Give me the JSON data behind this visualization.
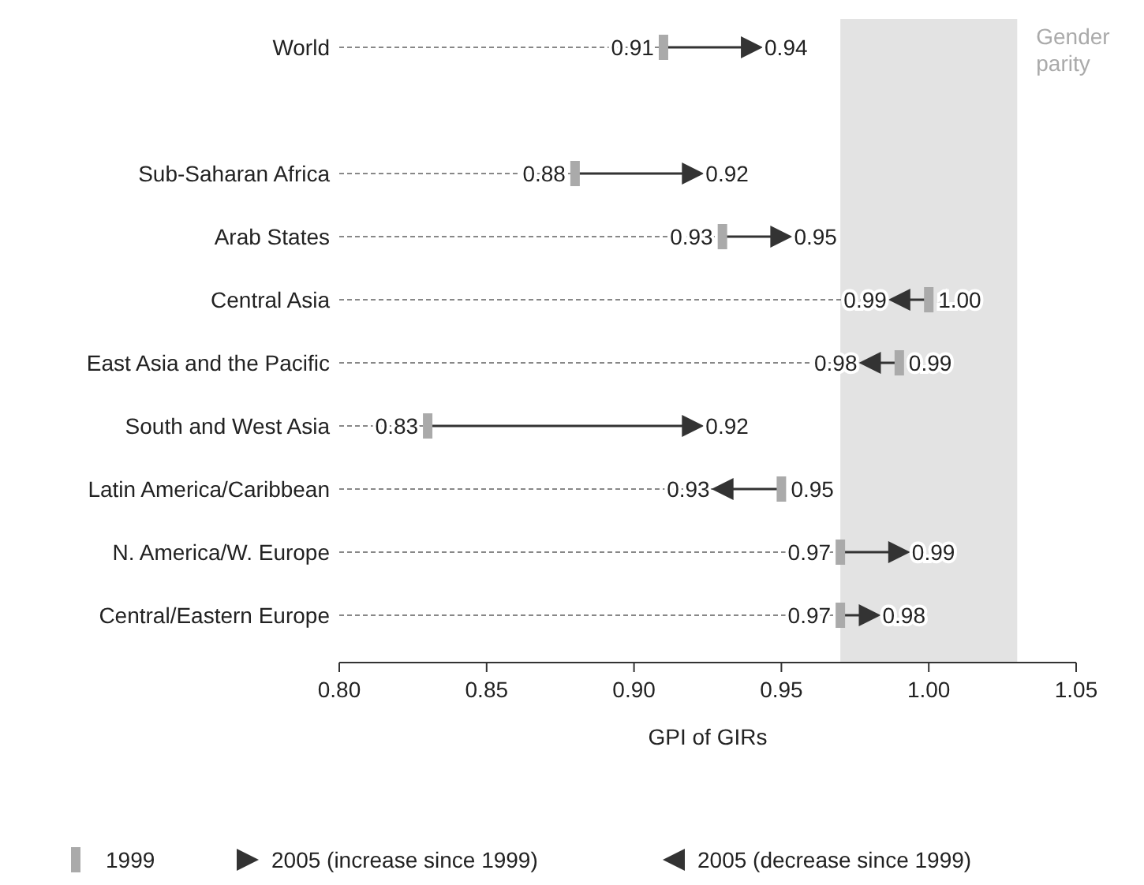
{
  "chart_data": {
    "type": "scatter",
    "orientation": "horizontal",
    "xlabel": "GPI of GIRs",
    "categories": [
      "World",
      null,
      "Sub-Saharan Africa",
      "Arab States",
      "Central Asia",
      "East Asia and the Pacific",
      "South and West Asia",
      "Latin America/Caribbean",
      "N. America/W. Europe",
      "Central/Eastern Europe"
    ],
    "series": [
      {
        "name": "1999",
        "type": "lollipop",
        "color": "#aaaaaa",
        "marker": "square",
        "line_style": "dashed",
        "values": [
          0.91,
          null,
          0.88,
          0.93,
          1.0,
          0.99,
          0.83,
          0.95,
          0.97,
          0.97
        ],
        "value_labels": [
          "0.91",
          null,
          "0.88",
          "0.93",
          "1.00",
          "0.99",
          "0.83",
          "0.95",
          "0.97",
          "0.97"
        ]
      },
      {
        "name": "2005 (increase since 1999)",
        "type": "scatter",
        "color": "#333333",
        "marker": "triangle",
        "values": [
          0.94,
          null,
          0.92,
          0.95,
          null,
          null,
          0.92,
          null,
          0.99,
          0.98
        ]
      },
      {
        "name": "2005 (decrease since 1999)",
        "type": "scatter",
        "color": "#333333",
        "marker": "triangle",
        "values": [
          null,
          null,
          null,
          null,
          0.99,
          0.98,
          null,
          0.93,
          null,
          null
        ]
      }
    ],
    "xlim": [
      0.8,
      1.05
    ],
    "xticks": [
      {
        "value": 0.8,
        "label": "0.80"
      },
      {
        "value": 0.85,
        "label": "0.85"
      },
      {
        "value": 0.9,
        "label": "0.90"
      },
      {
        "value": 0.95,
        "label": "0.95"
      },
      {
        "value": 1.0,
        "label": "1.00"
      },
      {
        "value": 1.05,
        "label": "1.05"
      }
    ],
    "bands": [
      {
        "axis": "x",
        "from": 0.97,
        "to": 1.03,
        "label": "Gender parity",
        "color": "#e3e3e3"
      }
    ],
    "data_labels": true,
    "legend": "bottom",
    "grid": false
  }
}
